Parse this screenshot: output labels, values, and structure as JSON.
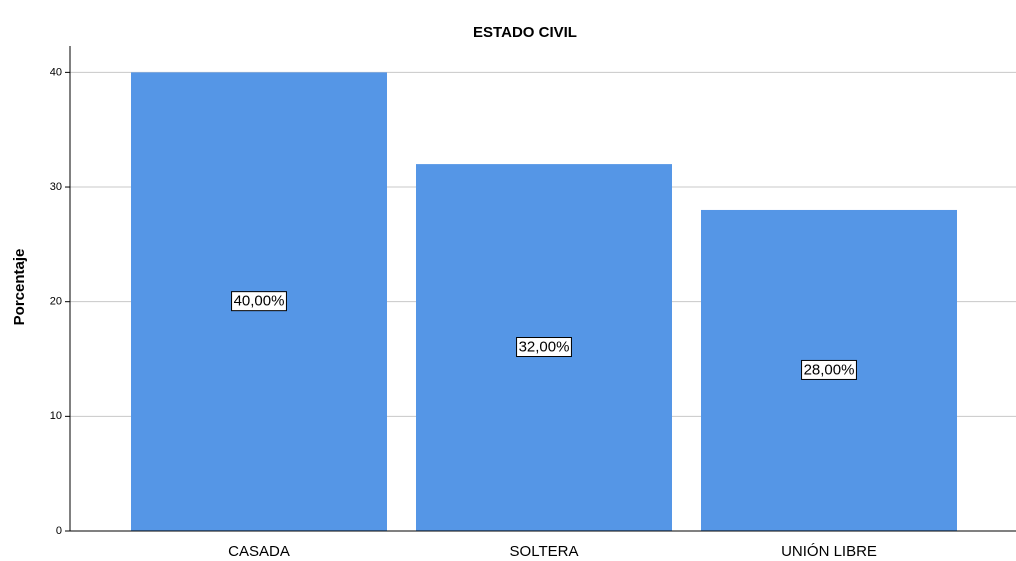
{
  "chart_data": {
    "type": "bar",
    "title": "ESTADO CIVIL",
    "y_label": "Porcentaje",
    "categories": [
      "CASADA",
      "SOLTERA",
      "UNIÓN LIBRE"
    ],
    "values": [
      40,
      32,
      28
    ],
    "value_labels": [
      "40,00%",
      "32,00%",
      "28,00%"
    ],
    "color": "#5596e6",
    "ylim": [
      0,
      42.3
    ],
    "yticks": [
      0,
      10,
      20,
      30,
      40
    ],
    "grid": true
  }
}
